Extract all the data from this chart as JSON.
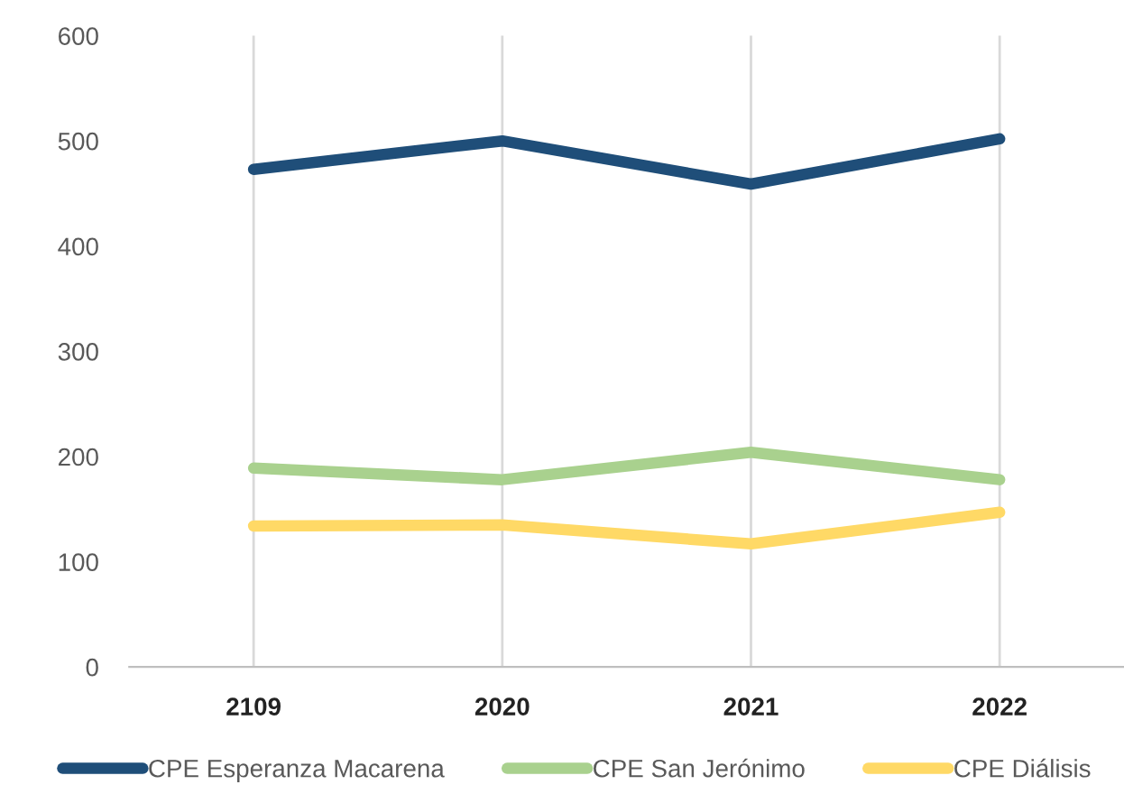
{
  "chart_data": {
    "type": "line",
    "categories": [
      "2109",
      "2020",
      "2021",
      "2022"
    ],
    "series": [
      {
        "name": "CPE Esperanza Macarena",
        "color": "#1f4e79",
        "values": [
          473,
          500,
          459,
          502
        ]
      },
      {
        "name": "CPE San Jerónimo",
        "color": "#a9d18e",
        "values": [
          189,
          178,
          204,
          178
        ]
      },
      {
        "name": "CPE Diálisis",
        "color": "#ffd966",
        "values": [
          134,
          135,
          117,
          147
        ]
      }
    ],
    "ylim": [
      0,
      600
    ],
    "yticks": [
      0,
      100,
      200,
      300,
      400,
      500,
      600
    ],
    "grid": "x",
    "legend": "bottom",
    "marker": "none",
    "line_style": "solid"
  }
}
